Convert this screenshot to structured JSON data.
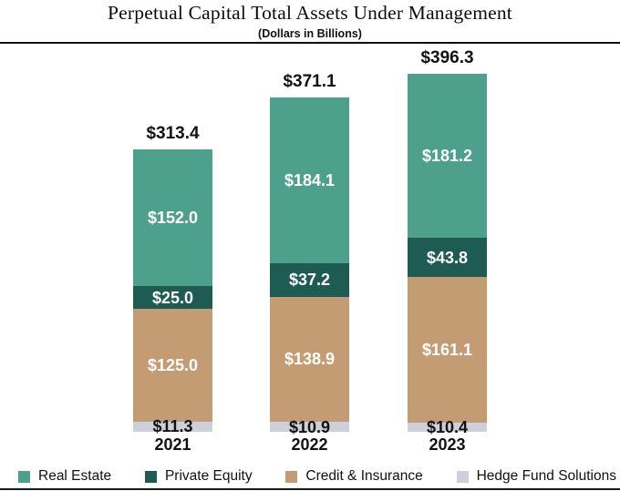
{
  "title": "Perpetual Capital Total Assets Under Management",
  "subtitle": "(Dollars in Billions)",
  "chart_data": {
    "type": "bar",
    "stacked": true,
    "title": "Perpetual Capital Total Assets Under Management",
    "subtitle": "(Dollars in Billions)",
    "categories": [
      "2021",
      "2022",
      "2023"
    ],
    "totals": [
      "$313.4",
      "$371.1",
      "$396.3"
    ],
    "value_prefix": "$",
    "series": [
      {
        "name": "Hedge Fund Solutions",
        "color": "#CDD0DB",
        "label_color": "#121212",
        "values": [
          11.3,
          10.9,
          10.4
        ]
      },
      {
        "name": "Credit & Insurance",
        "color": "#C49C74",
        "label_color": "#FFFFFF",
        "values": [
          125.0,
          138.9,
          161.1
        ]
      },
      {
        "name": "Private Equity",
        "color": "#1E5B53",
        "label_color": "#FFFFFF",
        "values": [
          25.0,
          37.2,
          43.8
        ]
      },
      {
        "name": "Real Estate",
        "color": "#4DA08C",
        "label_color": "#FFFFFF",
        "values": [
          152.0,
          184.1,
          181.2
        ]
      }
    ],
    "legend_order": [
      "Real Estate",
      "Private Equity",
      "Credit & Insurance",
      "Hedge Fund Solutions"
    ],
    "legend_position": "bottom",
    "grid": false,
    "axes_visible": false,
    "segment_labels": "inside",
    "total_labels": "above-bar"
  }
}
